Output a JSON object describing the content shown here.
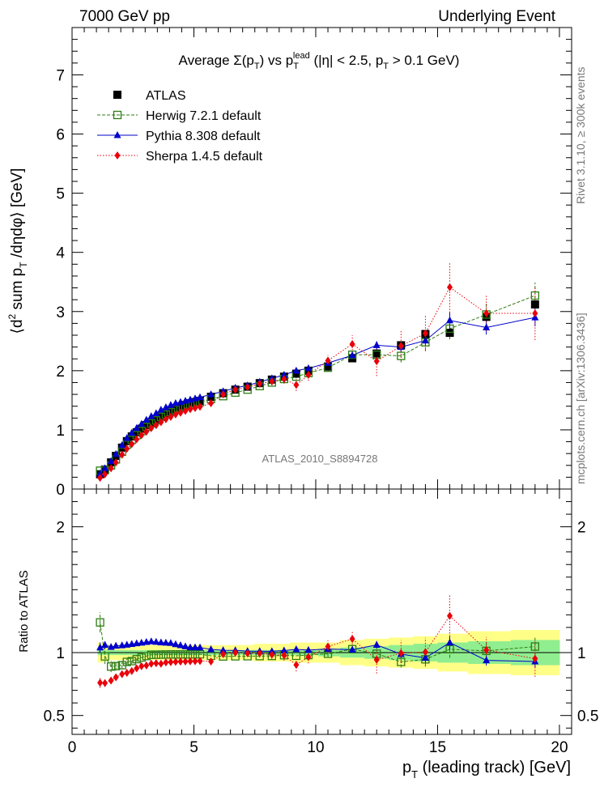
{
  "header": {
    "left": "7000 GeV pp",
    "right": "Underlying Event",
    "side_top": "Rivet 3.1.10, ≥ 300k events",
    "side_bottom": "mcplots.cern.ch [arXiv:1306.3436]"
  },
  "chart_data": {
    "type": "scatter",
    "title": "Average Σ(p_T) vs p_T^lead (|η| < 2.5, p_T > 0.1 GeV)",
    "analysis_tag": "ATLAS_2010_S8894728",
    "xlabel": "p_T (leading track) [GeV]",
    "ylabel": "⟨d² sum p_T /dηdφ⟩ [GeV]",
    "ratio_ylabel": "Ratio to ATLAS",
    "xlim": [
      0,
      20.5
    ],
    "ylim": [
      0,
      7.8
    ],
    "ratio_ylim": [
      0.35,
      2.3
    ],
    "x_ticks": [
      0,
      5,
      10,
      15,
      20
    ],
    "y_ticks": [
      0,
      1,
      2,
      3,
      4,
      5,
      6,
      7
    ],
    "ratio_ticks": [
      0.5,
      1,
      2
    ],
    "legend_position": "top-left",
    "x": [
      1.15,
      1.35,
      1.6,
      1.8,
      2.05,
      2.25,
      2.45,
      2.65,
      2.85,
      3.05,
      3.25,
      3.45,
      3.65,
      3.85,
      4.05,
      4.25,
      4.45,
      4.65,
      4.85,
      5.05,
      5.25,
      5.7,
      6.2,
      6.7,
      7.2,
      7.7,
      8.2,
      8.7,
      9.2,
      9.7,
      10.5,
      11.5,
      12.5,
      13.5,
      14.5,
      15.5,
      17.0,
      19.0
    ],
    "series": [
      {
        "name": "ATLAS",
        "color": "#000000",
        "marker": "square",
        "values": [
          0.25,
          0.33,
          0.45,
          0.56,
          0.7,
          0.81,
          0.89,
          0.96,
          1.02,
          1.08,
          1.13,
          1.18,
          1.24,
          1.28,
          1.32,
          1.36,
          1.39,
          1.42,
          1.45,
          1.47,
          1.49,
          1.56,
          1.62,
          1.68,
          1.73,
          1.79,
          1.85,
          1.9,
          1.95,
          2.0,
          2.07,
          2.21,
          2.29,
          2.43,
          2.62,
          2.64,
          2.91,
          3.12
        ]
      },
      {
        "name": "Herwig 7.2.1 default",
        "color": "#2f7d12",
        "marker": "open-square",
        "values": [
          0.31,
          0.32,
          0.4,
          0.5,
          0.63,
          0.75,
          0.83,
          0.91,
          0.98,
          1.05,
          1.11,
          1.16,
          1.22,
          1.26,
          1.3,
          1.34,
          1.37,
          1.4,
          1.43,
          1.45,
          1.47,
          1.52,
          1.57,
          1.63,
          1.68,
          1.74,
          1.8,
          1.86,
          1.9,
          1.96,
          2.05,
          2.27,
          2.27,
          2.25,
          2.48,
          2.71,
          2.95,
          3.27
        ]
      },
      {
        "name": "Pythia 8.308 default",
        "color": "#0000cc",
        "marker": "triangle",
        "values": [
          0.26,
          0.35,
          0.47,
          0.59,
          0.74,
          0.86,
          0.95,
          1.03,
          1.1,
          1.17,
          1.23,
          1.28,
          1.34,
          1.38,
          1.42,
          1.45,
          1.47,
          1.49,
          1.51,
          1.53,
          1.55,
          1.6,
          1.65,
          1.71,
          1.75,
          1.81,
          1.87,
          1.93,
          2.0,
          2.04,
          2.13,
          2.26,
          2.43,
          2.4,
          2.51,
          2.85,
          2.73,
          2.9
        ]
      },
      {
        "name": "Sherpa 1.4.5 default",
        "color": "#e8000b",
        "marker": "diamond",
        "values": [
          0.19,
          0.25,
          0.35,
          0.45,
          0.58,
          0.68,
          0.76,
          0.84,
          0.91,
          0.97,
          1.03,
          1.08,
          1.13,
          1.18,
          1.22,
          1.26,
          1.29,
          1.32,
          1.35,
          1.37,
          1.39,
          1.45,
          1.6,
          1.68,
          1.72,
          1.78,
          1.82,
          1.86,
          1.76,
          1.93,
          2.17,
          2.45,
          2.16,
          2.42,
          2.63,
          3.41,
          2.97,
          2.97
        ]
      }
    ],
    "errors": {
      "Herwig 7.2.1 default": [
        0.02,
        0.02,
        0.02,
        0.02,
        0.02,
        0.02,
        0.02,
        0.02,
        0.02,
        0.02,
        0.02,
        0.02,
        0.02,
        0.02,
        0.02,
        0.02,
        0.02,
        0.02,
        0.02,
        0.02,
        0.02,
        0.02,
        0.02,
        0.02,
        0.02,
        0.02,
        0.02,
        0.03,
        0.03,
        0.04,
        0.05,
        0.07,
        0.09,
        0.11,
        0.14,
        0.18,
        0.2,
        0.22
      ],
      "Pythia 8.308 default": [
        0.01,
        0.01,
        0.01,
        0.01,
        0.01,
        0.01,
        0.01,
        0.01,
        0.01,
        0.01,
        0.01,
        0.01,
        0.01,
        0.01,
        0.01,
        0.01,
        0.01,
        0.01,
        0.01,
        0.01,
        0.01,
        0.01,
        0.01,
        0.02,
        0.02,
        0.02,
        0.02,
        0.02,
        0.03,
        0.03,
        0.04,
        0.05,
        0.07,
        0.08,
        0.1,
        0.15,
        0.12,
        0.15
      ],
      "Sherpa 1.4.5 default": [
        0.01,
        0.01,
        0.01,
        0.01,
        0.01,
        0.01,
        0.01,
        0.01,
        0.01,
        0.01,
        0.01,
        0.01,
        0.01,
        0.02,
        0.02,
        0.02,
        0.02,
        0.02,
        0.02,
        0.02,
        0.02,
        0.03,
        0.03,
        0.04,
        0.05,
        0.06,
        0.07,
        0.08,
        0.1,
        0.1,
        0.1,
        0.15,
        0.25,
        0.25,
        0.3,
        0.43,
        0.3,
        0.45
      ]
    },
    "ratio_band": {
      "stat_color": "#90ee90",
      "total_color": "#ffff88",
      "total_halfwidth": [
        0.08,
        0.07,
        0.06,
        0.06,
        0.06,
        0.06,
        0.06,
        0.06,
        0.06,
        0.06,
        0.06,
        0.06,
        0.06,
        0.06,
        0.06,
        0.06,
        0.06,
        0.06,
        0.06,
        0.06,
        0.06,
        0.06,
        0.06,
        0.06,
        0.06,
        0.07,
        0.07,
        0.07,
        0.08,
        0.08,
        0.08,
        0.1,
        0.11,
        0.12,
        0.13,
        0.15,
        0.17,
        0.18
      ],
      "stat_halfwidth": [
        0.02,
        0.02,
        0.02,
        0.02,
        0.02,
        0.02,
        0.02,
        0.02,
        0.02,
        0.02,
        0.02,
        0.02,
        0.02,
        0.02,
        0.02,
        0.02,
        0.02,
        0.02,
        0.02,
        0.02,
        0.02,
        0.02,
        0.02,
        0.02,
        0.02,
        0.02,
        0.02,
        0.02,
        0.02,
        0.02,
        0.03,
        0.04,
        0.05,
        0.06,
        0.07,
        0.08,
        0.09,
        0.1
      ]
    }
  }
}
